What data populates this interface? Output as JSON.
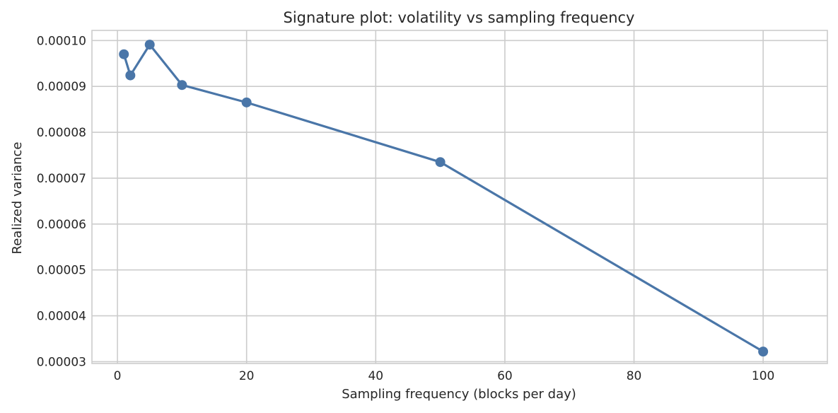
{
  "chart_data": {
    "type": "line",
    "title": "Signature plot: volatility vs sampling frequency",
    "xlabel": "Sampling frequency (blocks per day)",
    "ylabel": "Realized variance",
    "xlim": [
      -3.95,
      109.95
    ],
    "ylim": [
      2.96e-05,
      0.0001022
    ],
    "x_ticks": [
      0,
      20,
      40,
      60,
      80,
      100
    ],
    "x_tick_labels": [
      "0",
      "20",
      "40",
      "60",
      "80",
      "100"
    ],
    "y_ticks": [
      3e-05,
      4e-05,
      5e-05,
      6e-05,
      7e-05,
      8e-05,
      9e-05,
      0.0001
    ],
    "y_tick_labels": [
      "0.00003",
      "0.00004",
      "0.00005",
      "0.00006",
      "0.00007",
      "0.00008",
      "0.00009",
      "0.00010"
    ],
    "grid": true,
    "color": "#4a76a8",
    "series": [
      {
        "x": [
          1,
          2,
          5,
          10,
          20,
          50,
          100
        ],
        "y": [
          9.7e-05,
          9.24e-05,
          9.91e-05,
          9.03e-05,
          8.65e-05,
          7.35e-05,
          3.22e-05
        ]
      }
    ]
  }
}
